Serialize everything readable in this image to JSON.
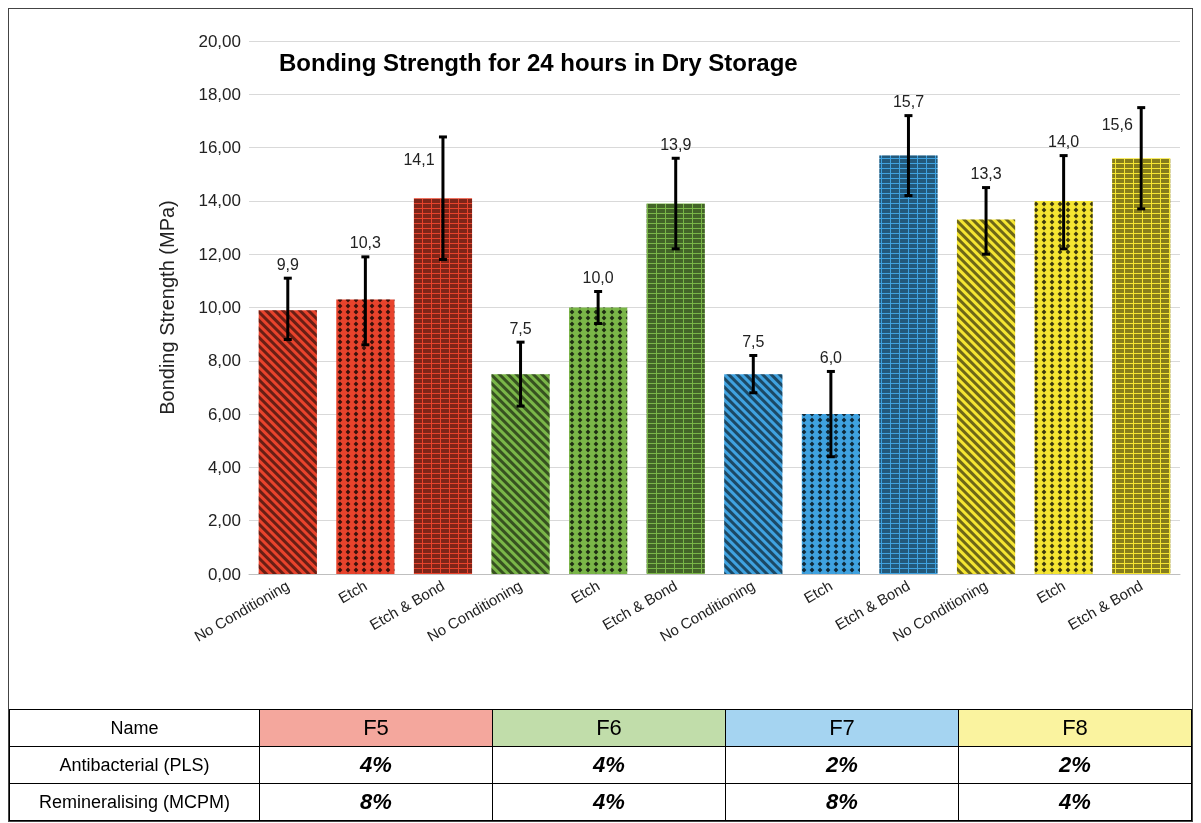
{
  "chart_data": {
    "type": "bar",
    "title": "Bonding Strength for 24 hours in Dry Storage",
    "ylabel": "Bonding Strength (MPa)",
    "categories": [
      "No Conditioning",
      "Etch",
      "Etch & Bond",
      "No Conditioning",
      "Etch",
      "Etch & Bond",
      "No Conditioning",
      "Etch",
      "Etch & Bond",
      "No Conditioning",
      "Etch",
      "Etch & Bond"
    ],
    "values": [
      9.9,
      10.3,
      14.1,
      7.5,
      10.0,
      13.9,
      7.5,
      6.0,
      15.7,
      13.3,
      14.0,
      15.6
    ],
    "value_labels": [
      "9,9",
      "10,3",
      "14,1",
      "7,5",
      "10,0",
      "13,9",
      "7,5",
      "6,0",
      "15,7",
      "13,3",
      "14,0",
      "15,6"
    ],
    "errors": [
      [
        8.8,
        11.1
      ],
      [
        8.6,
        11.9
      ],
      [
        11.8,
        16.4
      ],
      [
        6.3,
        8.7
      ],
      [
        9.4,
        10.6
      ],
      [
        12.2,
        15.6
      ],
      [
        6.8,
        8.2
      ],
      [
        4.4,
        7.6
      ],
      [
        14.2,
        17.2
      ],
      [
        12.0,
        14.5
      ],
      [
        12.2,
        15.7
      ],
      [
        13.7,
        17.5
      ]
    ],
    "colors": [
      "#e8432c",
      "#e8432c",
      "#e8432c",
      "#7ab648",
      "#7ab648",
      "#7ab648",
      "#3fa2e0",
      "#3fa2e0",
      "#3fa2e0",
      "#f5e532",
      "#f5e532",
      "#f5e532"
    ],
    "ylim": [
      0,
      20
    ],
    "yticks": [
      {
        "value": 0,
        "label": "0,00"
      },
      {
        "value": 2,
        "label": "2,00"
      },
      {
        "value": 4,
        "label": "4,00"
      },
      {
        "value": 6,
        "label": "6,00"
      },
      {
        "value": 8,
        "label": "8,00"
      },
      {
        "value": 10,
        "label": "10,00"
      },
      {
        "value": 12,
        "label": "12,00"
      },
      {
        "value": 14,
        "label": "14,00"
      },
      {
        "value": 16,
        "label": "16,00"
      },
      {
        "value": 18,
        "label": "18,00"
      },
      {
        "value": 20,
        "label": "20,00"
      }
    ],
    "grid": "y",
    "annotations": [
      "Name",
      "F5",
      "F6",
      "F7",
      "F8",
      "Antibacterial (PLS)",
      "4%",
      "4%",
      "2%",
      "2%",
      "Remineralising (MCPM)",
      "8%",
      "4%",
      "8%",
      "4%"
    ]
  }
}
